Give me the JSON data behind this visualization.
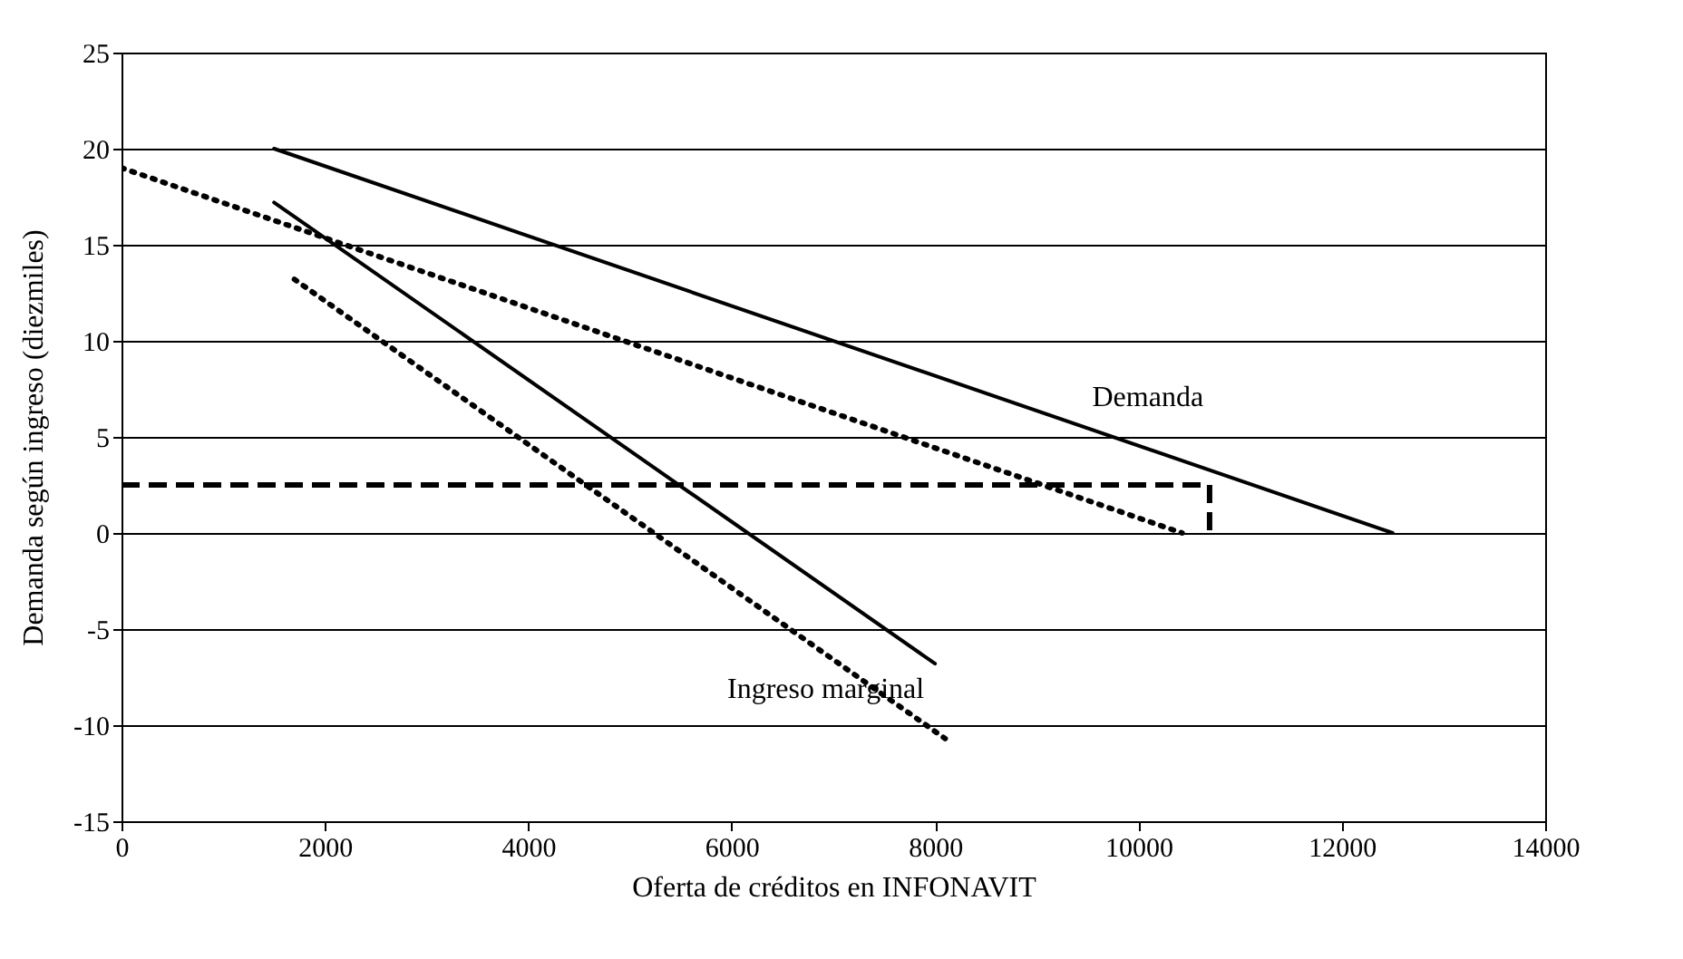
{
  "chart_data": {
    "type": "line",
    "xlabel": "Oferta de créditos en INFONAVIT",
    "ylabel": "Demanda según ingreso  (diezmiles)",
    "xlim": [
      0,
      14000
    ],
    "xticks": [
      0,
      2000,
      4000,
      6000,
      8000,
      10000,
      12000,
      14000
    ],
    "ylim": [
      -15,
      25
    ],
    "yticks": [
      -15,
      -10,
      -5,
      0,
      5,
      10,
      15,
      20,
      25
    ],
    "grid": "y",
    "marker": "none",
    "series": [
      {
        "name": "Demanda",
        "color": "#000000",
        "line_style": "solid",
        "x": [
          1500,
          12500
        ],
        "values": [
          20,
          0
        ]
      },
      {
        "name": "Ingreso marginal",
        "color": "#000000",
        "line_style": "solid",
        "x": [
          1500,
          8000
        ],
        "values": [
          17.2,
          -6.8
        ]
      },
      {
        "color": "#000000",
        "line_style": "dotted",
        "x": [
          0,
          10430
        ],
        "values": [
          19,
          0
        ]
      },
      {
        "color": "#000000",
        "line_style": "dotted",
        "x": [
          1700,
          8100
        ],
        "values": [
          13.2,
          -10.7
        ]
      },
      {
        "color": "#000000",
        "line_style": "dashed",
        "x": [
          0,
          10700,
          10700
        ],
        "values": [
          2.5,
          2.5,
          0
        ]
      }
    ]
  }
}
